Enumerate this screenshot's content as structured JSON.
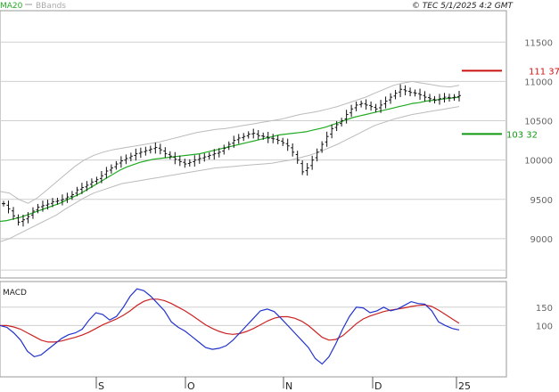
{
  "header": {
    "legend_ma": "MA20",
    "legend_bb": "BBands",
    "timestamp": "© TEC 5/1/2025 4:2 GMT"
  },
  "colors": {
    "ma": "#22aa22",
    "bb": "#bbbbbb",
    "bars": "#111111",
    "resistance": "#cc1111",
    "support": "#119911",
    "macd": "#2233cc",
    "signal": "#cc2222",
    "grid": "#cfcfcf"
  },
  "chart_data": [
    {
      "type": "line",
      "subtype": "ohlc",
      "title": "",
      "y_ticks": [
        "11500",
        "11000",
        "10500",
        "10000",
        "9500",
        "9000"
      ],
      "ylim": [
        8500,
        11900
      ],
      "x_labels": [
        "S",
        "O",
        "N",
        "D",
        "25"
      ],
      "resistance": {
        "value": 11137,
        "label": "111 37"
      },
      "support": {
        "value": 10332,
        "label": "103 32"
      },
      "close": [
        9445,
        9380,
        9290,
        9210,
        9240,
        9280,
        9350,
        9400,
        9420,
        9440,
        9470,
        9480,
        9500,
        9530,
        9560,
        9620,
        9650,
        9680,
        9720,
        9750,
        9800,
        9860,
        9900,
        9950,
        9990,
        10020,
        10050,
        10080,
        10100,
        10120,
        10140,
        10160,
        10130,
        10080,
        10050,
        10010,
        9980,
        9950,
        9970,
        10000,
        10020,
        10040,
        10060,
        10080,
        10100,
        10150,
        10200,
        10250,
        10280,
        10300,
        10330,
        10340,
        10310,
        10300,
        10280,
        10270,
        10250,
        10220,
        10180,
        10100,
        10000,
        9850,
        9900,
        10000,
        10100,
        10200,
        10300,
        10400,
        10450,
        10500,
        10580,
        10650,
        10700,
        10720,
        10700,
        10680,
        10650,
        10700,
        10750,
        10800,
        10850,
        10900,
        10880,
        10860,
        10850,
        10830,
        10800,
        10780,
        10760,
        10780,
        10800,
        10790,
        10800,
        10820
      ],
      "ma20": [
        9220,
        9230,
        9250,
        9270,
        9300,
        9330,
        9360,
        9390,
        9420,
        9450,
        9490,
        9530,
        9570,
        9620,
        9670,
        9720,
        9770,
        9820,
        9870,
        9910,
        9940,
        9970,
        9990,
        10010,
        10020,
        10030,
        10040,
        10050,
        10060,
        10070,
        10080,
        10100,
        10120,
        10140,
        10160,
        10180,
        10200,
        10220,
        10240,
        10260,
        10280,
        10300,
        10320,
        10330,
        10340,
        10350,
        10360,
        10380,
        10400,
        10420,
        10450,
        10480,
        10510,
        10540,
        10560,
        10580,
        10600,
        10620,
        10640,
        10660,
        10680,
        10700,
        10720,
        10730,
        10750,
        10760,
        10770,
        10780,
        10790,
        10800
      ],
      "bb_upper": [
        9600,
        9580,
        9500,
        9450,
        9520,
        9620,
        9720,
        9820,
        9920,
        10000,
        10060,
        10100,
        10130,
        10150,
        10170,
        10190,
        10210,
        10230,
        10260,
        10290,
        10320,
        10350,
        10370,
        10390,
        10400,
        10420,
        10440,
        10460,
        10480,
        10500,
        10520,
        10550,
        10580,
        10600,
        10620,
        10650,
        10680,
        10720,
        10760,
        10800,
        10850,
        10900,
        10950,
        10980,
        11000,
        10980,
        10960,
        10940,
        10930,
        10950
      ],
      "bb_lower": [
        8960,
        9000,
        9060,
        9120,
        9180,
        9240,
        9300,
        9380,
        9450,
        9520,
        9580,
        9620,
        9660,
        9700,
        9720,
        9740,
        9760,
        9780,
        9800,
        9820,
        9840,
        9860,
        9880,
        9900,
        9910,
        9920,
        9930,
        9940,
        9950,
        9960,
        9980,
        10000,
        10030,
        10060,
        10100,
        10150,
        10200,
        10260,
        10320,
        10380,
        10440,
        10480,
        10520,
        10550,
        10580,
        10600,
        10620,
        10640,
        10660,
        10680
      ]
    },
    {
      "type": "line",
      "title": "MACD",
      "y_ticks": [
        "150",
        "100"
      ],
      "ylim": [
        -40,
        220
      ],
      "series": [
        {
          "values": [
            100,
            95,
            80,
            60,
            30,
            15,
            20,
            35,
            50,
            65,
            75,
            80,
            90,
            115,
            135,
            130,
            115,
            125,
            150,
            180,
            200,
            195,
            180,
            160,
            140,
            110,
            95,
            85,
            70,
            55,
            40,
            35,
            38,
            45,
            60,
            80,
            100,
            120,
            140,
            145,
            138,
            120,
            100,
            80,
            60,
            40,
            10,
            -5,
            15,
            50,
            90,
            125,
            150,
            148,
            135,
            140,
            150,
            140,
            145,
            155,
            165,
            160,
            158,
            140,
            110,
            100,
            92,
            88
          ]
        },
        {
          "values": [
            100,
            100,
            96,
            90,
            80,
            70,
            60,
            55,
            55,
            58,
            63,
            68,
            74,
            82,
            92,
            102,
            110,
            118,
            128,
            140,
            155,
            166,
            172,
            172,
            168,
            160,
            150,
            140,
            128,
            115,
            102,
            92,
            84,
            78,
            76,
            78,
            84,
            92,
            102,
            112,
            120,
            124,
            124,
            120,
            112,
            100,
            84,
            68,
            60,
            62,
            72,
            88,
            105,
            118,
            126,
            132,
            138,
            142,
            145,
            148,
            152,
            155,
            156,
            152,
            142,
            130,
            118,
            106
          ]
        }
      ]
    }
  ]
}
